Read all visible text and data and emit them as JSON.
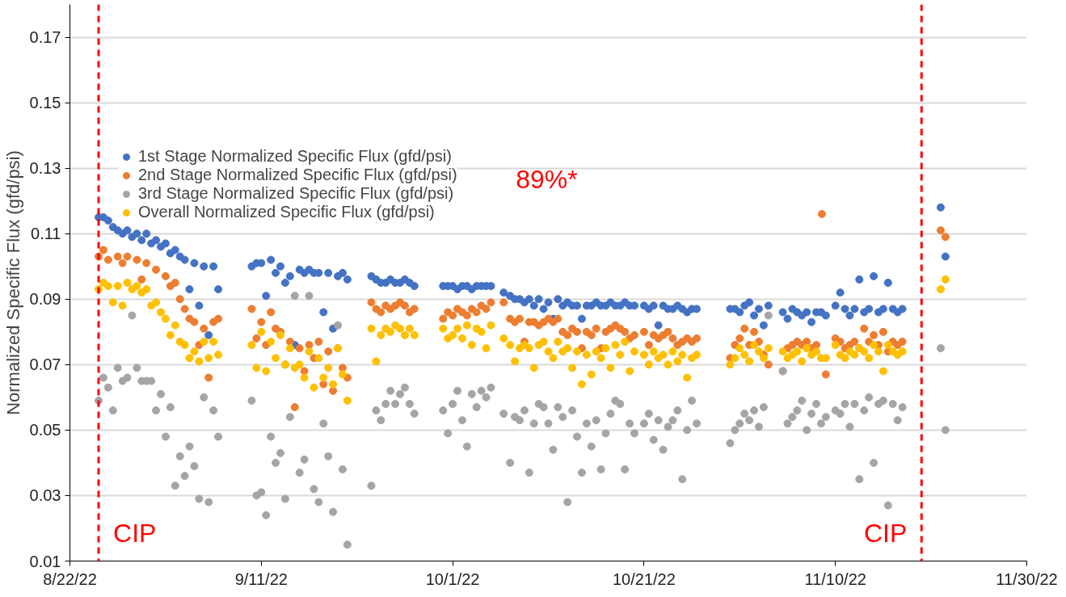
{
  "chart_data": {
    "type": "scatter",
    "ylabel": "Normalized Specific Flux (gfd/psi)",
    "xlim": [
      "2022-08-22",
      "2022-11-30"
    ],
    "xticks": [
      {
        "value": "2022-08-22",
        "label": "8/22/22"
      },
      {
        "value": "2022-09-11",
        "label": "9/11/22"
      },
      {
        "value": "2022-10-01",
        "label": "10/1/22"
      },
      {
        "value": "2022-10-21",
        "label": "10/21/22"
      },
      {
        "value": "2022-11-10",
        "label": "11/10/22"
      },
      {
        "value": "2022-11-30",
        "label": "11/30/22"
      }
    ],
    "ylim": [
      0.01,
      0.18
    ],
    "yticks": [
      0.01,
      0.03,
      0.05,
      0.07,
      0.09,
      0.11,
      0.13,
      0.15,
      0.17
    ],
    "grid": "y",
    "legend": "top left",
    "marker": "circle",
    "annotations": [
      "89%*"
    ],
    "ref_lines": [
      {
        "axis": "x",
        "value": "2022-08-25",
        "label": "CIP",
        "color": "#ff0000",
        "line_style": "dashed"
      },
      {
        "axis": "x",
        "value": "2022-11-19",
        "label": "CIP",
        "color": "#ff0000",
        "line_style": "dashed"
      }
    ],
    "series": [
      {
        "name": "1st Stage Normalized Specific Flux (gfd/psi)",
        "color": "#4472c4",
        "x": [
          "2022-08-25",
          "2022-08-25T12:00",
          "2022-08-26",
          "2022-08-26T12:00",
          "2022-08-27",
          "2022-08-27T12:00",
          "2022-08-28",
          "2022-08-28T12:00",
          "2022-08-29",
          "2022-08-29T12:00",
          "2022-08-30",
          "2022-08-30T12:00",
          "2022-08-31",
          "2022-08-31T12:00",
          "2022-09-01",
          "2022-09-01T12:00",
          "2022-09-02",
          "2022-09-02T12:00",
          "2022-09-03",
          "2022-09-03T12:00",
          "2022-09-04",
          "2022-09-04T12:00",
          "2022-09-05",
          "2022-09-05T12:00",
          "2022-09-06",
          "2022-09-06T12:00",
          "2022-09-10",
          "2022-09-10T12:00",
          "2022-09-11",
          "2022-09-11T12:00",
          "2022-09-12",
          "2022-09-12T12:00",
          "2022-09-13",
          "2022-09-13T12:00",
          "2022-09-14",
          "2022-09-14T12:00",
          "2022-09-15",
          "2022-09-15T12:00",
          "2022-09-16",
          "2022-09-16T12:00",
          "2022-09-17",
          "2022-09-17T12:00",
          "2022-09-18",
          "2022-09-18T12:00",
          "2022-09-19",
          "2022-09-19T12:00",
          "2022-09-20",
          "2022-09-22T12:00",
          "2022-09-23",
          "2022-09-23T12:00",
          "2022-09-24",
          "2022-09-24T12:00",
          "2022-09-25",
          "2022-09-25T12:00",
          "2022-09-26",
          "2022-09-26T12:00",
          "2022-09-27",
          "2022-09-30",
          "2022-09-30T12:00",
          "2022-10-01",
          "2022-10-01T12:00",
          "2022-10-02",
          "2022-10-02T12:00",
          "2022-10-03",
          "2022-10-03T12:00",
          "2022-10-04",
          "2022-10-04T12:00",
          "2022-10-05",
          "2022-10-06T08:00",
          "2022-10-07",
          "2022-10-07T12:00",
          "2022-10-08",
          "2022-10-08T12:00",
          "2022-10-09",
          "2022-10-09T12:00",
          "2022-10-10",
          "2022-10-10T12:00",
          "2022-10-11",
          "2022-10-11T12:00",
          "2022-10-12",
          "2022-10-12T12:00",
          "2022-10-13",
          "2022-10-13T12:00",
          "2022-10-14",
          "2022-10-14T12:00",
          "2022-10-15",
          "2022-10-15T12:00",
          "2022-10-16",
          "2022-10-16T12:00",
          "2022-10-17",
          "2022-10-17T12:00",
          "2022-10-18",
          "2022-10-18T12:00",
          "2022-10-19",
          "2022-10-19T12:00",
          "2022-10-20",
          "2022-10-21",
          "2022-10-21T12:00",
          "2022-10-22",
          "2022-10-22T12:00",
          "2022-10-23",
          "2022-10-23T12:00",
          "2022-10-24",
          "2022-10-24T12:00",
          "2022-10-25",
          "2022-10-25T12:00",
          "2022-10-26",
          "2022-10-26T12:00",
          "2022-10-30",
          "2022-10-30T12:00",
          "2022-10-31",
          "2022-10-31T12:00",
          "2022-11-01",
          "2022-11-01T12:00",
          "2022-11-02",
          "2022-11-02T12:00",
          "2022-11-03",
          "2022-11-04T12:00",
          "2022-11-05",
          "2022-11-05T12:00",
          "2022-11-06",
          "2022-11-06T12:00",
          "2022-11-07",
          "2022-11-07T12:00",
          "2022-11-08",
          "2022-11-08T12:00",
          "2022-11-09",
          "2022-11-10",
          "2022-11-10T12:00",
          "2022-11-11",
          "2022-11-11T12:00",
          "2022-11-12",
          "2022-11-12T12:00",
          "2022-11-13",
          "2022-11-13T12:00",
          "2022-11-14",
          "2022-11-14T12:00",
          "2022-11-15",
          "2022-11-15T12:00",
          "2022-11-16",
          "2022-11-16T12:00",
          "2022-11-17",
          "2022-11-21",
          "2022-11-21T12:00"
        ],
        "values": [
          0.115,
          0.115,
          0.114,
          0.112,
          0.111,
          0.11,
          0.111,
          0.109,
          0.11,
          0.108,
          0.11,
          0.107,
          0.108,
          0.106,
          0.107,
          0.104,
          0.105,
          0.103,
          0.102,
          0.093,
          0.101,
          0.088,
          0.1,
          0.079,
          0.1,
          0.093,
          0.1,
          0.101,
          0.101,
          0.091,
          0.102,
          0.098,
          0.1,
          0.095,
          0.097,
          0.076,
          0.099,
          0.098,
          0.099,
          0.098,
          0.098,
          0.086,
          0.098,
          0.081,
          0.097,
          0.098,
          0.096,
          0.097,
          0.096,
          0.095,
          0.095,
          0.096,
          0.095,
          0.095,
          0.096,
          0.095,
          0.094,
          0.094,
          0.094,
          0.094,
          0.093,
          0.094,
          0.094,
          0.093,
          0.094,
          0.094,
          0.094,
          0.094,
          0.092,
          0.091,
          0.09,
          0.09,
          0.089,
          0.09,
          0.088,
          0.09,
          0.087,
          0.089,
          0.084,
          0.09,
          0.088,
          0.089,
          0.088,
          0.088,
          0.084,
          0.088,
          0.088,
          0.089,
          0.088,
          0.088,
          0.089,
          0.088,
          0.088,
          0.089,
          0.088,
          0.088,
          0.088,
          0.087,
          0.088,
          0.082,
          0.088,
          0.087,
          0.087,
          0.088,
          0.087,
          0.086,
          0.087,
          0.087,
          0.087,
          0.087,
          0.086,
          0.088,
          0.089,
          0.085,
          0.087,
          0.082,
          0.088,
          0.086,
          0.084,
          0.087,
          0.086,
          0.085,
          0.086,
          0.083,
          0.086,
          0.086,
          0.085,
          0.088,
          0.092,
          0.087,
          0.085,
          0.087,
          0.096,
          0.086,
          0.087,
          0.097,
          0.086,
          0.087,
          0.095,
          0.087,
          0.086,
          0.087,
          0.118,
          0.103
        ]
      },
      {
        "name": "2nd Stage Normalized Specific Flux (gfd/psi)",
        "color": "#ed7d31",
        "x": [
          "2022-08-25",
          "2022-08-25T12:00",
          "2022-08-26",
          "2022-08-27",
          "2022-08-27T12:00",
          "2022-08-28",
          "2022-08-29",
          "2022-08-29T12:00",
          "2022-08-30",
          "2022-08-31",
          "2022-09-01",
          "2022-09-01T12:00",
          "2022-09-02",
          "2022-09-02T12:00",
          "2022-09-03",
          "2022-09-03T12:00",
          "2022-09-04",
          "2022-09-04T12:00",
          "2022-09-05",
          "2022-09-05T12:00",
          "2022-09-06",
          "2022-09-06T12:00",
          "2022-09-10",
          "2022-09-10T12:00",
          "2022-09-11",
          "2022-09-11T12:00",
          "2022-09-12",
          "2022-09-12T12:00",
          "2022-09-13",
          "2022-09-13T12:00",
          "2022-09-14",
          "2022-09-14T12:00",
          "2022-09-15",
          "2022-09-15T12:00",
          "2022-09-16",
          "2022-09-16T12:00",
          "2022-09-17",
          "2022-09-17T12:00",
          "2022-09-18",
          "2022-09-18T12:00",
          "2022-09-19",
          "2022-09-19T12:00",
          "2022-09-20",
          "2022-09-22T12:00",
          "2022-09-23",
          "2022-09-23T12:00",
          "2022-09-24",
          "2022-09-24T12:00",
          "2022-09-25",
          "2022-09-25T12:00",
          "2022-09-26",
          "2022-09-26T12:00",
          "2022-09-27",
          "2022-09-30",
          "2022-09-30T12:00",
          "2022-10-01",
          "2022-10-01T12:00",
          "2022-10-02",
          "2022-10-02T12:00",
          "2022-10-03",
          "2022-10-03T12:00",
          "2022-10-04",
          "2022-10-04T12:00",
          "2022-10-05",
          "2022-10-06T08:00",
          "2022-10-07",
          "2022-10-07T12:00",
          "2022-10-08",
          "2022-10-08T12:00",
          "2022-10-09",
          "2022-10-09T12:00",
          "2022-10-10",
          "2022-10-10T12:00",
          "2022-10-11",
          "2022-10-11T12:00",
          "2022-10-12",
          "2022-10-12T12:00",
          "2022-10-13",
          "2022-10-13T12:00",
          "2022-10-14",
          "2022-10-14T12:00",
          "2022-10-15",
          "2022-10-15T12:00",
          "2022-10-16",
          "2022-10-16T12:00",
          "2022-10-17",
          "2022-10-17T12:00",
          "2022-10-18",
          "2022-10-18T12:00",
          "2022-10-19",
          "2022-10-19T12:00",
          "2022-10-20",
          "2022-10-21",
          "2022-10-21T12:00",
          "2022-10-22",
          "2022-10-22T12:00",
          "2022-10-23",
          "2022-10-23T12:00",
          "2022-10-24",
          "2022-10-24T12:00",
          "2022-10-25",
          "2022-10-25T12:00",
          "2022-10-26",
          "2022-10-26T12:00",
          "2022-10-30",
          "2022-10-30T12:00",
          "2022-10-31",
          "2022-10-31T12:00",
          "2022-11-01",
          "2022-11-01T12:00",
          "2022-11-02",
          "2022-11-02T12:00",
          "2022-11-03",
          "2022-11-04T12:00",
          "2022-11-05",
          "2022-11-05T12:00",
          "2022-11-06",
          "2022-11-06T12:00",
          "2022-11-07",
          "2022-11-07T12:00",
          "2022-11-08",
          "2022-11-08T14:00",
          "2022-11-09",
          "2022-11-10",
          "2022-11-10T12:00",
          "2022-11-11",
          "2022-11-11T12:00",
          "2022-11-12",
          "2022-11-12T12:00",
          "2022-11-13",
          "2022-11-13T12:00",
          "2022-11-14",
          "2022-11-14T12:00",
          "2022-11-15",
          "2022-11-15T12:00",
          "2022-11-16",
          "2022-11-16T12:00",
          "2022-11-17",
          "2022-11-21",
          "2022-11-21T12:00"
        ],
        "values": [
          0.103,
          0.105,
          0.102,
          0.103,
          0.101,
          0.103,
          0.102,
          0.096,
          0.101,
          0.099,
          0.097,
          0.094,
          0.095,
          0.09,
          0.087,
          0.084,
          0.083,
          0.076,
          0.081,
          0.066,
          0.083,
          0.084,
          0.087,
          0.078,
          0.083,
          0.076,
          0.086,
          0.081,
          0.08,
          0.07,
          0.077,
          0.057,
          0.075,
          0.068,
          0.076,
          0.072,
          0.077,
          0.064,
          0.074,
          0.062,
          0.075,
          0.069,
          0.066,
          0.089,
          0.087,
          0.086,
          0.088,
          0.087,
          0.088,
          0.089,
          0.088,
          0.086,
          0.087,
          0.084,
          0.086,
          0.085,
          0.087,
          0.086,
          0.085,
          0.087,
          0.086,
          0.088,
          0.087,
          0.089,
          0.089,
          0.084,
          0.083,
          0.084,
          0.077,
          0.083,
          0.083,
          0.082,
          0.083,
          0.084,
          0.083,
          0.084,
          0.08,
          0.079,
          0.081,
          0.08,
          0.075,
          0.08,
          0.079,
          0.081,
          0.075,
          0.08,
          0.081,
          0.082,
          0.081,
          0.08,
          0.078,
          0.079,
          0.08,
          0.076,
          0.079,
          0.078,
          0.079,
          0.08,
          0.078,
          0.076,
          0.077,
          0.078,
          0.077,
          0.078,
          0.072,
          0.076,
          0.078,
          0.081,
          0.076,
          0.08,
          0.077,
          0.073,
          0.07,
          0.068,
          0.075,
          0.076,
          0.077,
          0.076,
          0.077,
          0.075,
          0.076,
          0.116,
          0.067,
          0.078,
          0.077,
          0.075,
          0.076,
          0.077,
          0.075,
          0.081,
          0.077,
          0.079,
          0.076,
          0.08,
          0.074,
          0.077,
          0.076,
          0.077,
          0.111,
          0.109
        ]
      },
      {
        "name": "3rd Stage Normalized Specific Flux (gfd/psi)",
        "color": "#a5a5a5",
        "x": [
          "2022-08-25",
          "2022-08-25T12:00",
          "2022-08-26",
          "2022-08-26T12:00",
          "2022-08-27",
          "2022-08-27T12:00",
          "2022-08-28",
          "2022-08-28T12:00",
          "2022-08-29",
          "2022-08-29T12:00",
          "2022-08-30",
          "2022-08-30T12:00",
          "2022-08-31",
          "2022-08-31T12:00",
          "2022-09-01",
          "2022-09-01T12:00",
          "2022-09-02",
          "2022-09-02T12:00",
          "2022-09-03",
          "2022-09-03T12:00",
          "2022-09-04",
          "2022-09-04T12:00",
          "2022-09-05",
          "2022-09-05T12:00",
          "2022-09-06",
          "2022-09-06T12:00",
          "2022-09-10",
          "2022-09-10T12:00",
          "2022-09-11",
          "2022-09-11T12:00",
          "2022-09-12",
          "2022-09-12T12:00",
          "2022-09-13",
          "2022-09-13T12:00",
          "2022-09-14",
          "2022-09-14T12:00",
          "2022-09-15",
          "2022-09-15T12:00",
          "2022-09-16",
          "2022-09-16T12:00",
          "2022-09-17",
          "2022-09-17T12:00",
          "2022-09-18",
          "2022-09-18T12:00",
          "2022-09-19",
          "2022-09-19T12:00",
          "2022-09-20",
          "2022-09-22T12:00",
          "2022-09-23",
          "2022-09-23T12:00",
          "2022-09-24",
          "2022-09-24T12:00",
          "2022-09-25",
          "2022-09-25T12:00",
          "2022-09-26",
          "2022-09-26T12:00",
          "2022-09-27",
          "2022-09-30",
          "2022-09-30T12:00",
          "2022-10-01",
          "2022-10-01T12:00",
          "2022-10-02",
          "2022-10-02T12:00",
          "2022-10-03",
          "2022-10-03T12:00",
          "2022-10-04",
          "2022-10-04T12:00",
          "2022-10-05",
          "2022-10-06T08:00",
          "2022-10-07",
          "2022-10-07T12:00",
          "2022-10-08",
          "2022-10-08T12:00",
          "2022-10-09",
          "2022-10-09T12:00",
          "2022-10-10",
          "2022-10-10T12:00",
          "2022-10-11",
          "2022-10-11T12:00",
          "2022-10-12",
          "2022-10-12T12:00",
          "2022-10-13",
          "2022-10-13T12:00",
          "2022-10-14",
          "2022-10-14T12:00",
          "2022-10-15",
          "2022-10-15T12:00",
          "2022-10-16",
          "2022-10-16T12:00",
          "2022-10-17",
          "2022-10-17T12:00",
          "2022-10-18",
          "2022-10-18T12:00",
          "2022-10-19",
          "2022-10-19T12:00",
          "2022-10-20",
          "2022-10-21",
          "2022-10-21T12:00",
          "2022-10-22",
          "2022-10-22T12:00",
          "2022-10-23",
          "2022-10-23T12:00",
          "2022-10-24",
          "2022-10-24T12:00",
          "2022-10-25",
          "2022-10-25T12:00",
          "2022-10-26",
          "2022-10-26T12:00",
          "2022-10-30",
          "2022-10-30T12:00",
          "2022-10-31",
          "2022-10-31T12:00",
          "2022-11-01",
          "2022-11-01T12:00",
          "2022-11-02",
          "2022-11-02T12:00",
          "2022-11-03",
          "2022-11-04T12:00",
          "2022-11-05",
          "2022-11-05T12:00",
          "2022-11-06",
          "2022-11-06T12:00",
          "2022-11-07",
          "2022-11-07T12:00",
          "2022-11-08",
          "2022-11-08T12:00",
          "2022-11-09",
          "2022-11-10",
          "2022-11-10T12:00",
          "2022-11-11",
          "2022-11-11T12:00",
          "2022-11-12",
          "2022-11-12T12:00",
          "2022-11-13",
          "2022-11-13T12:00",
          "2022-11-14",
          "2022-11-14T12:00",
          "2022-11-15",
          "2022-11-15T12:00",
          "2022-11-16",
          "2022-11-16T12:00",
          "2022-11-17",
          "2022-11-21",
          "2022-11-21T12:00"
        ],
        "values": [
          0.059,
          0.066,
          0.063,
          0.056,
          0.069,
          0.065,
          0.066,
          0.085,
          0.069,
          0.065,
          0.065,
          0.065,
          0.056,
          0.061,
          0.048,
          0.057,
          0.033,
          0.042,
          0.036,
          0.045,
          0.039,
          0.029,
          0.06,
          0.028,
          0.056,
          0.048,
          0.059,
          0.03,
          0.031,
          0.024,
          0.048,
          0.04,
          0.043,
          0.029,
          0.054,
          0.091,
          0.037,
          0.041,
          0.091,
          0.032,
          0.028,
          0.052,
          0.042,
          0.025,
          0.082,
          0.038,
          0.015,
          0.033,
          0.056,
          0.053,
          0.058,
          0.062,
          0.058,
          0.061,
          0.063,
          0.058,
          0.055,
          0.056,
          0.049,
          0.058,
          0.062,
          0.053,
          0.045,
          0.061,
          0.057,
          0.062,
          0.06,
          0.063,
          0.055,
          0.04,
          0.054,
          0.053,
          0.056,
          0.037,
          0.052,
          0.058,
          0.057,
          0.052,
          0.044,
          0.057,
          0.054,
          0.028,
          0.056,
          0.048,
          0.037,
          0.052,
          0.045,
          0.053,
          0.038,
          0.049,
          0.055,
          0.059,
          0.058,
          0.038,
          0.052,
          0.049,
          0.052,
          0.055,
          0.047,
          0.053,
          0.044,
          0.051,
          0.053,
          0.056,
          0.035,
          0.05,
          0.059,
          0.052,
          0.046,
          0.05,
          0.052,
          0.055,
          0.053,
          0.056,
          0.051,
          0.057,
          0.085,
          0.068,
          0.052,
          0.054,
          0.056,
          0.059,
          0.05,
          0.055,
          0.058,
          0.052,
          0.054,
          0.056,
          0.055,
          0.058,
          0.051,
          0.058,
          0.035,
          0.056,
          0.06,
          0.04,
          0.058,
          0.059,
          0.027,
          0.058,
          0.053,
          0.057,
          0.075,
          0.05
        ]
      },
      {
        "name": "Overall Normalized Specific Flux (gfd/psi)",
        "color": "#ffc000",
        "x": [
          "2022-08-25",
          "2022-08-25T12:00",
          "2022-08-26",
          "2022-08-26T12:00",
          "2022-08-27",
          "2022-08-27T12:00",
          "2022-08-28",
          "2022-08-28T12:00",
          "2022-08-29",
          "2022-08-29T12:00",
          "2022-08-30",
          "2022-08-30T12:00",
          "2022-08-31",
          "2022-08-31T12:00",
          "2022-09-01",
          "2022-09-01T12:00",
          "2022-09-02",
          "2022-09-02T12:00",
          "2022-09-03",
          "2022-09-03T12:00",
          "2022-09-04",
          "2022-09-04T12:00",
          "2022-09-05",
          "2022-09-05T12:00",
          "2022-09-06",
          "2022-09-06T12:00",
          "2022-09-10",
          "2022-09-10T12:00",
          "2022-09-11",
          "2022-09-11T12:00",
          "2022-09-12",
          "2022-09-12T12:00",
          "2022-09-13",
          "2022-09-13T12:00",
          "2022-09-14",
          "2022-09-14T12:00",
          "2022-09-15",
          "2022-09-15T12:00",
          "2022-09-16",
          "2022-09-16T12:00",
          "2022-09-17",
          "2022-09-17T12:00",
          "2022-09-18",
          "2022-09-18T12:00",
          "2022-09-19",
          "2022-09-19T12:00",
          "2022-09-20",
          "2022-09-22T12:00",
          "2022-09-23",
          "2022-09-23T12:00",
          "2022-09-24",
          "2022-09-24T12:00",
          "2022-09-25",
          "2022-09-25T12:00",
          "2022-09-26",
          "2022-09-26T12:00",
          "2022-09-27",
          "2022-09-30",
          "2022-09-30T12:00",
          "2022-10-01",
          "2022-10-01T12:00",
          "2022-10-02",
          "2022-10-02T12:00",
          "2022-10-03",
          "2022-10-03T12:00",
          "2022-10-04",
          "2022-10-04T12:00",
          "2022-10-05",
          "2022-10-06T08:00",
          "2022-10-07",
          "2022-10-07T12:00",
          "2022-10-08",
          "2022-10-08T12:00",
          "2022-10-09",
          "2022-10-09T12:00",
          "2022-10-10",
          "2022-10-10T12:00",
          "2022-10-11",
          "2022-10-11T12:00",
          "2022-10-12",
          "2022-10-12T12:00",
          "2022-10-13",
          "2022-10-13T12:00",
          "2022-10-14",
          "2022-10-14T12:00",
          "2022-10-15",
          "2022-10-15T12:00",
          "2022-10-16",
          "2022-10-16T12:00",
          "2022-10-17",
          "2022-10-17T12:00",
          "2022-10-18",
          "2022-10-18T12:00",
          "2022-10-19",
          "2022-10-19T12:00",
          "2022-10-20",
          "2022-10-21",
          "2022-10-21T12:00",
          "2022-10-22",
          "2022-10-22T12:00",
          "2022-10-23",
          "2022-10-23T12:00",
          "2022-10-24",
          "2022-10-24T12:00",
          "2022-10-25",
          "2022-10-25T12:00",
          "2022-10-26",
          "2022-10-26T12:00",
          "2022-10-30",
          "2022-10-30T12:00",
          "2022-10-31",
          "2022-10-31T12:00",
          "2022-11-01",
          "2022-11-01T12:00",
          "2022-11-02",
          "2022-11-02T12:00",
          "2022-11-03",
          "2022-11-04T12:00",
          "2022-11-05",
          "2022-11-05T12:00",
          "2022-11-06",
          "2022-11-06T12:00",
          "2022-11-07",
          "2022-11-07T12:00",
          "2022-11-08",
          "2022-11-08T12:00",
          "2022-11-09",
          "2022-11-10",
          "2022-11-10T12:00",
          "2022-11-11",
          "2022-11-11T12:00",
          "2022-11-12",
          "2022-11-12T12:00",
          "2022-11-13",
          "2022-11-13T12:00",
          "2022-11-14",
          "2022-11-14T12:00",
          "2022-11-15",
          "2022-11-15T12:00",
          "2022-11-16",
          "2022-11-16T12:00",
          "2022-11-17",
          "2022-11-21",
          "2022-11-21T12:00"
        ],
        "values": [
          0.093,
          0.095,
          0.094,
          0.089,
          0.094,
          0.088,
          0.095,
          0.093,
          0.094,
          0.092,
          0.093,
          0.088,
          0.089,
          0.086,
          0.084,
          0.079,
          0.082,
          0.077,
          0.076,
          0.072,
          0.074,
          0.071,
          0.077,
          0.072,
          0.077,
          0.073,
          0.076,
          0.069,
          0.08,
          0.068,
          0.077,
          0.072,
          0.079,
          0.07,
          0.075,
          0.069,
          0.07,
          0.066,
          0.074,
          0.063,
          0.072,
          0.066,
          0.069,
          0.064,
          0.075,
          0.067,
          0.059,
          0.081,
          0.071,
          0.079,
          0.081,
          0.08,
          0.082,
          0.081,
          0.079,
          0.081,
          0.079,
          0.081,
          0.078,
          0.079,
          0.081,
          0.078,
          0.082,
          0.076,
          0.081,
          0.08,
          0.075,
          0.082,
          0.078,
          0.076,
          0.071,
          0.075,
          0.076,
          0.075,
          0.069,
          0.076,
          0.077,
          0.074,
          0.072,
          0.077,
          0.074,
          0.075,
          0.069,
          0.074,
          0.064,
          0.073,
          0.067,
          0.074,
          0.072,
          0.075,
          0.069,
          0.076,
          0.073,
          0.077,
          0.068,
          0.074,
          0.073,
          0.07,
          0.074,
          0.072,
          0.073,
          0.07,
          0.074,
          0.071,
          0.073,
          0.066,
          0.072,
          0.073,
          0.07,
          0.072,
          0.075,
          0.073,
          0.071,
          0.076,
          0.074,
          0.072,
          0.075,
          0.074,
          0.072,
          0.073,
          0.074,
          0.071,
          0.075,
          0.073,
          0.074,
          0.072,
          0.072,
          0.076,
          0.073,
          0.072,
          0.074,
          0.073,
          0.075,
          0.074,
          0.072,
          0.076,
          0.074,
          0.068,
          0.076,
          0.074,
          0.073,
          0.074,
          0.093,
          0.096
        ]
      }
    ]
  }
}
